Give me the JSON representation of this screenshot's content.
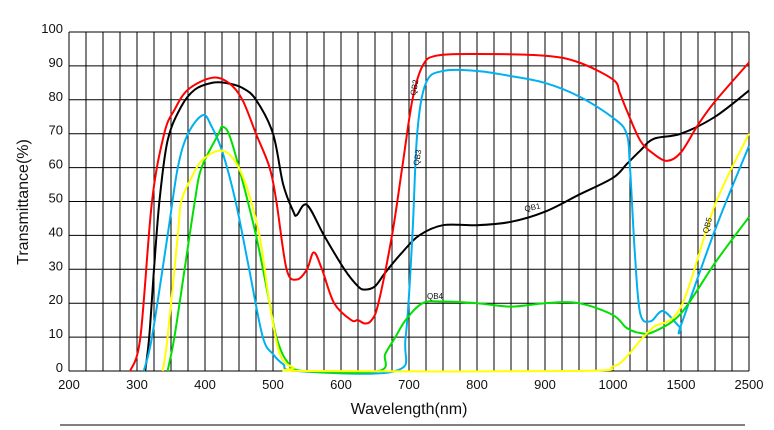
{
  "chart_data": {
    "type": "line",
    "title": "",
    "xlabel": "Wavelength(nm)",
    "ylabel": "Transmittance(%)",
    "ylim": [
      0,
      100
    ],
    "yticks": [
      0,
      10,
      20,
      30,
      40,
      50,
      60,
      70,
      80,
      90,
      100
    ],
    "xticks": [
      200,
      300,
      400,
      500,
      600,
      700,
      800,
      900,
      1000,
      1500,
      2500
    ],
    "x_scale": "piecewise-linear (200-1000 linear, 1000-1500 compressed, 1500-2500 further compressed)",
    "xlim": [
      200,
      2500
    ],
    "grid": true,
    "legend": "none (curves labelled inline)",
    "series": [
      {
        "name": "QB1",
        "color": "#000000",
        "x": [
          312,
          318,
          325,
          333,
          345,
          365,
          385,
          410,
          430,
          455,
          475,
          500,
          515,
          530,
          535,
          550,
          575,
          605,
          625,
          635,
          650,
          665,
          690,
          715,
          750,
          800,
          850,
          900,
          950,
          1000,
          1100,
          1200,
          1300,
          1500,
          2000,
          2500
        ],
        "y": [
          0,
          10,
          30,
          50,
          68,
          78,
          83,
          85,
          85,
          83.5,
          80,
          70,
          55,
          47,
          46,
          49,
          40,
          30,
          25,
          24,
          25,
          29,
          35,
          40,
          43,
          43,
          44,
          47,
          52,
          57,
          61,
          65,
          68.5,
          70,
          75,
          82.7
        ]
      },
      {
        "name": "QB2",
        "color": "#ff0000",
        "x": [
          290,
          305,
          322,
          340,
          355,
          375,
          410,
          435,
          455,
          475,
          495,
          505,
          520,
          535,
          550,
          560,
          572,
          590,
          615,
          625,
          635,
          645,
          655,
          675,
          690,
          705,
          720,
          740,
          800,
          900,
          950,
          1000,
          1050,
          1100,
          1200,
          1300,
          1400,
          1500,
          1750,
          2000,
          2500
        ],
        "y": [
          0,
          10,
          50,
          70,
          77,
          83,
          86.5,
          85,
          80,
          70,
          60,
          50,
          30,
          27,
          30,
          35,
          30,
          20,
          15,
          15,
          14,
          15,
          20,
          40,
          60,
          80,
          90,
          93,
          93.5,
          93,
          91,
          86,
          82,
          77,
          68,
          64,
          62,
          64.5,
          72.6,
          79.5,
          91
        ]
      },
      {
        "name": "QB3",
        "color": "#00b0f0",
        "x": [
          310,
          322,
          345,
          360,
          375,
          397,
          410,
          425,
          445,
          465,
          485,
          500,
          515,
          535,
          680,
          695,
          705,
          712,
          725,
          750,
          800,
          850,
          900,
          950,
          1000,
          1100,
          1125,
          1160,
          1200,
          1277,
          1368,
          1490,
          1500,
          2000,
          2500
        ],
        "y": [
          0,
          10,
          40,
          60,
          70,
          75.5,
          72,
          65,
          50,
          30,
          10,
          5,
          2,
          0,
          0,
          10,
          40,
          70,
          85,
          88.5,
          88.5,
          87,
          85,
          81,
          74.7,
          70,
          60,
          35,
          17,
          14.7,
          17.7,
          13,
          13.5,
          41.6,
          66.4
        ]
      },
      {
        "name": "QB4",
        "color": "#00e000",
        "x": [
          345,
          355,
          370,
          385,
          395,
          420,
          425,
          435,
          450,
          475,
          495,
          505,
          520,
          545,
          655,
          665,
          680,
          695,
          720,
          750,
          800,
          850,
          900,
          950,
          1000,
          1100,
          1200,
          1300,
          1500,
          2000,
          2500
        ],
        "y": [
          0,
          10,
          30,
          50,
          60,
          70,
          72,
          70,
          60,
          40,
          20,
          10,
          3,
          0,
          0,
          5,
          10,
          15,
          20,
          20.5,
          20,
          19,
          20,
          20,
          16.5,
          12.7,
          11.2,
          11.6,
          17,
          31.9,
          45.4
        ]
      },
      {
        "name": "QB5",
        "color": "#ffff00",
        "x": [
          338,
          345,
          360,
          365,
          380,
          395,
          420,
          440,
          460,
          480,
          495,
          510,
          530,
          550,
          950,
          1000,
          1100,
          1200,
          1300,
          1500,
          2000,
          2500
        ],
        "y": [
          0,
          10,
          40,
          50,
          57,
          62,
          65,
          63,
          55,
          40,
          20,
          5,
          1,
          0,
          0,
          1.3,
          4.2,
          9,
          13,
          19,
          49,
          70
        ]
      }
    ]
  }
}
